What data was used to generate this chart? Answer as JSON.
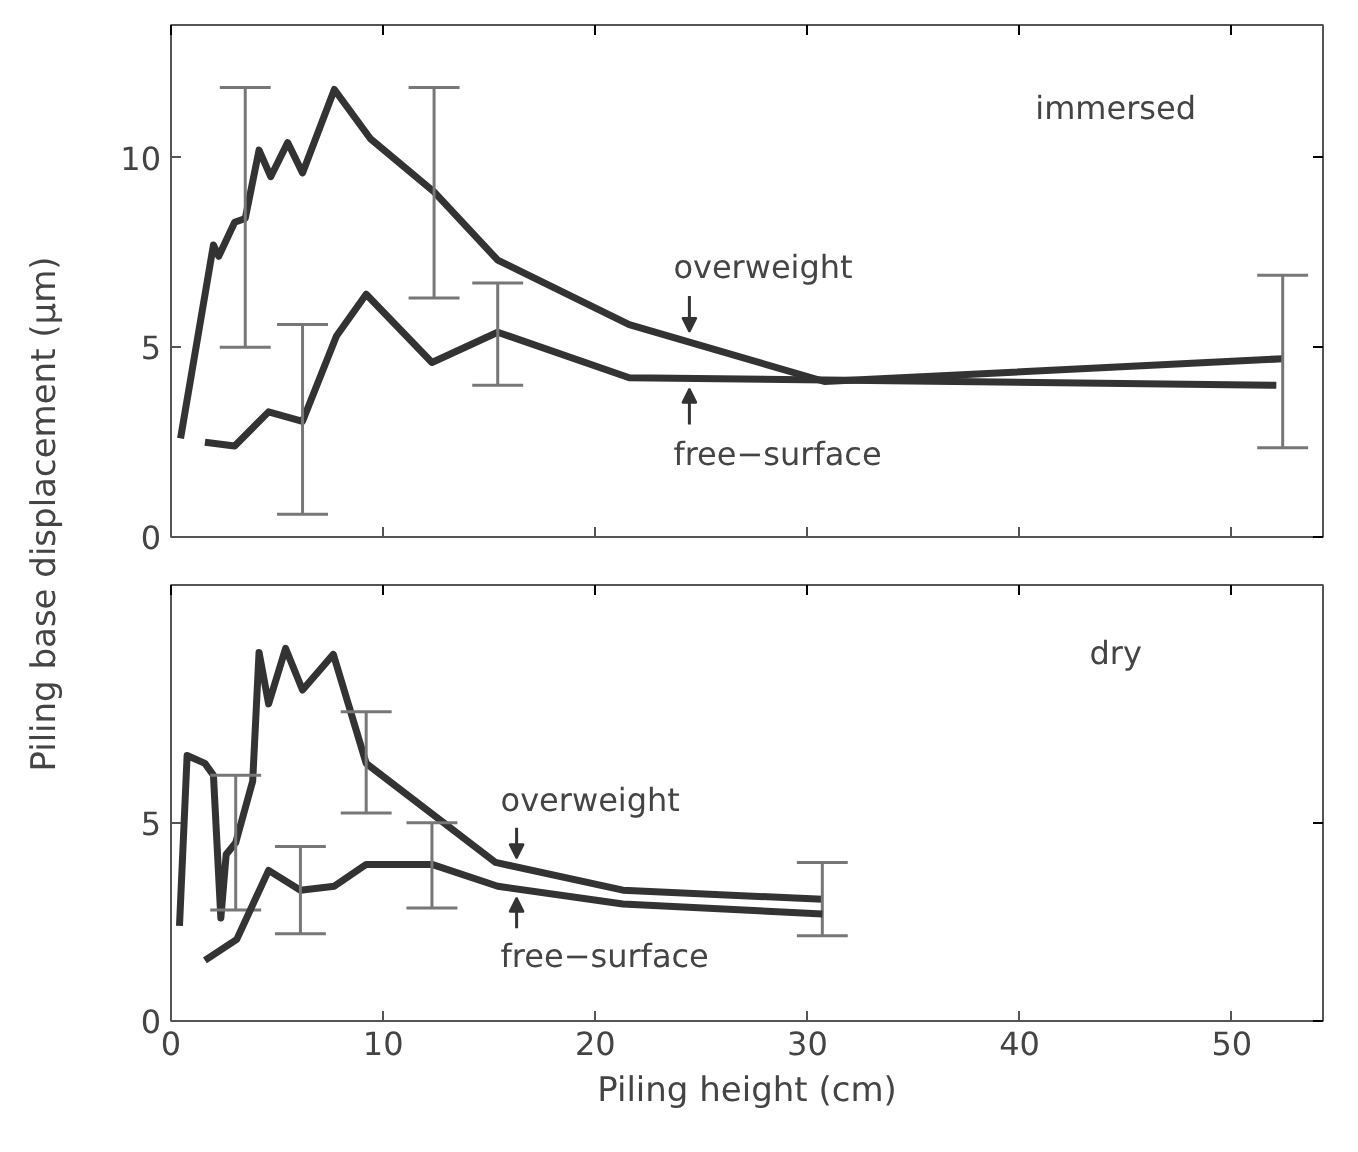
{
  "chart_data": [
    {
      "type": "line",
      "ylabel": "Piling base displacement (μm)",
      "xlim": [
        0,
        54.3
      ],
      "xticks": [
        0,
        10,
        20,
        30,
        40,
        50
      ],
      "ylim": [
        0,
        13.5
      ],
      "yticks": [
        0,
        5,
        10
      ],
      "tick_labels": "y",
      "grid": false,
      "marker": "none",
      "line_style": "solid",
      "series": [
        {
          "color": "#333333",
          "x": [
            0.45,
            2.0,
            2.25,
            3.0,
            3.5,
            4.15,
            4.7,
            5.5,
            6.2,
            7.7,
            9.4,
            12.4,
            15.4,
            21.6,
            30.8,
            52.4
          ],
          "values": [
            2.6,
            7.7,
            7.4,
            8.3,
            8.4,
            10.2,
            9.5,
            10.4,
            9.6,
            11.8,
            10.5,
            9.1,
            7.3,
            5.6,
            4.1,
            4.7
          ],
          "errors": [
            null,
            null,
            null,
            null,
            [
              5.0,
              11.85
            ],
            null,
            null,
            null,
            null,
            null,
            null,
            [
              6.3,
              11.85
            ],
            null,
            null,
            null,
            [
              2.35,
              6.9
            ]
          ]
        },
        {
          "color": "#333333",
          "x": [
            1.6,
            3.0,
            4.6,
            6.2,
            7.8,
            9.2,
            12.3,
            15.4,
            21.6,
            52.1
          ],
          "values": [
            2.5,
            2.4,
            3.3,
            3.05,
            5.3,
            6.4,
            4.6,
            5.4,
            4.2,
            4.0
          ],
          "errors": [
            null,
            null,
            null,
            [
              0.6,
              5.6
            ],
            null,
            null,
            null,
            [
              4.0,
              6.7
            ],
            null,
            null
          ]
        }
      ],
      "annotations": [
        "immersed",
        "overweight",
        "free−surface"
      ]
    },
    {
      "type": "line",
      "xlabel": "Piling height (cm)",
      "xlim": [
        0,
        54.3
      ],
      "xticks": [
        0,
        10,
        20,
        30,
        40,
        50
      ],
      "ylim": [
        0,
        11
      ],
      "yticks": [
        0,
        5
      ],
      "grid": false,
      "marker": "none",
      "line_style": "solid",
      "series": [
        {
          "color": "#333333",
          "x": [
            0.4,
            0.76,
            1.6,
            2.0,
            2.35,
            2.6,
            3.05,
            3.85,
            4.15,
            4.6,
            5.4,
            6.2,
            7.65,
            9.2,
            15.3,
            21.3,
            30.7
          ],
          "values": [
            2.4,
            6.7,
            6.5,
            6.2,
            2.6,
            4.2,
            4.5,
            6.05,
            9.3,
            8.0,
            9.4,
            8.35,
            9.25,
            6.5,
            4.0,
            3.3,
            3.07
          ],
          "errors": [
            null,
            null,
            null,
            null,
            null,
            null,
            [
              2.8,
              6.2
            ],
            null,
            null,
            null,
            null,
            null,
            null,
            [
              5.25,
              7.8
            ],
            null,
            null,
            [
              2.15,
              4.0
            ]
          ]
        },
        {
          "color": "#333333",
          "x": [
            1.6,
            3.1,
            4.6,
            6.1,
            7.7,
            9.2,
            12.3,
            15.4,
            21.3,
            30.7
          ],
          "values": [
            1.53,
            2.06,
            3.8,
            3.3,
            3.4,
            3.95,
            3.95,
            3.4,
            2.95,
            2.7
          ],
          "errors": [
            null,
            null,
            null,
            [
              2.2,
              4.4
            ],
            null,
            null,
            [
              2.85,
              5.0
            ],
            null,
            null,
            null
          ]
        }
      ],
      "annotations": [
        "dry",
        "overweight",
        "free−surface"
      ]
    }
  ]
}
